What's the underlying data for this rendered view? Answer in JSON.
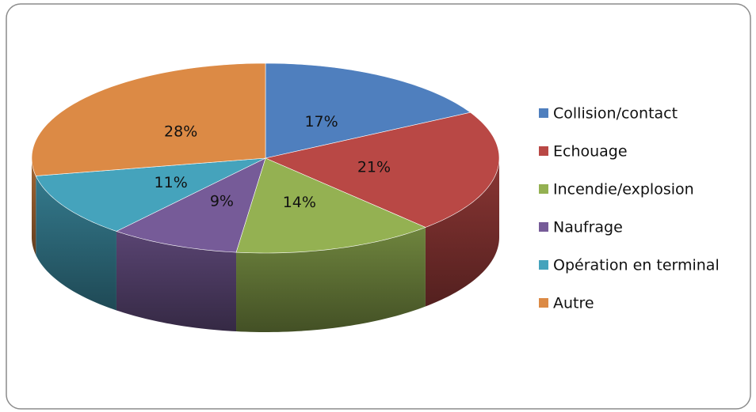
{
  "chart_data": {
    "type": "pie",
    "categories": [
      "Collision/contact",
      "Echouage",
      "Incendie/explosion",
      "Naufrage",
      "Opération en terminal",
      "Autre"
    ],
    "values": [
      17,
      21,
      14,
      9,
      11,
      28
    ],
    "value_labels": [
      "17%",
      "21%",
      "14%",
      "9%",
      "11%",
      "28%"
    ],
    "colors": [
      "#4f7fbe",
      "#b94845",
      "#94b152",
      "#765b98",
      "#45a3bc",
      "#dc8a45"
    ],
    "legend": "right"
  }
}
